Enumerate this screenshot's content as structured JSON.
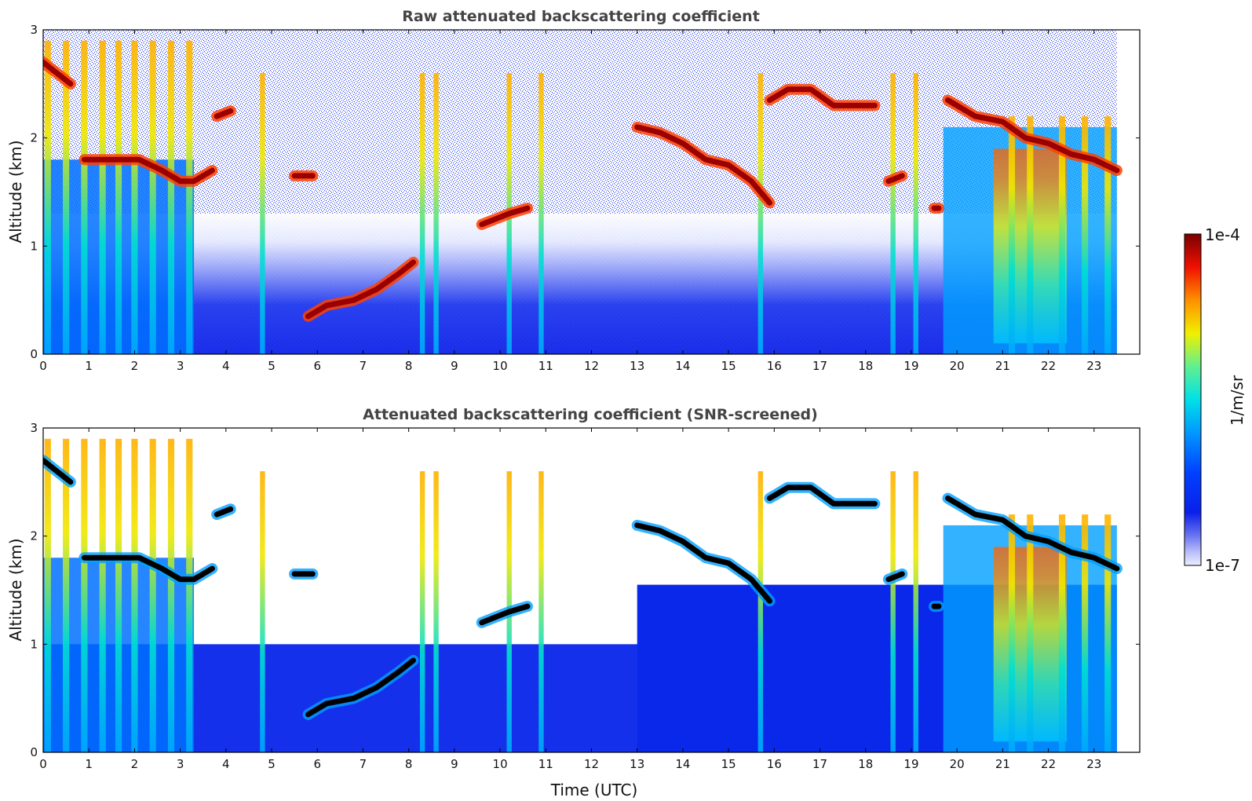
{
  "chart_data": [
    {
      "type": "heatmap",
      "title": "Raw attenuated backscattering coefficient",
      "xlabel": "",
      "ylabel": "Altitude (km)",
      "xlim": [
        0,
        24
      ],
      "ylim": [
        0,
        3
      ],
      "xticks": [
        "0",
        "1",
        "2",
        "3",
        "4",
        "5",
        "6",
        "7",
        "8",
        "9",
        "10",
        "11",
        "12",
        "13",
        "14",
        "15",
        "16",
        "17",
        "18",
        "19",
        "20",
        "21",
        "22",
        "23"
      ],
      "yticks": [
        "0",
        "1",
        "2",
        "3"
      ],
      "data_extent_hours": 23.5,
      "cloud_base_layers": [
        {
          "x": [
            0.0,
            0.3,
            0.6
          ],
          "y": [
            2.7,
            2.6,
            2.5
          ]
        },
        {
          "x": [
            0.9,
            1.5,
            2.1,
            2.6,
            3.0,
            3.3,
            3.7
          ],
          "y": [
            1.8,
            1.8,
            1.8,
            1.7,
            1.6,
            1.6,
            1.7
          ]
        },
        {
          "x": [
            3.8,
            4.1
          ],
          "y": [
            2.2,
            2.25
          ]
        },
        {
          "x": [
            5.5,
            5.9
          ],
          "y": [
            1.65,
            1.65
          ]
        },
        {
          "x": [
            5.8,
            6.2,
            6.8,
            7.3,
            7.8,
            8.1
          ],
          "y": [
            0.35,
            0.45,
            0.5,
            0.6,
            0.75,
            0.85
          ]
        },
        {
          "x": [
            9.6,
            10.2,
            10.6
          ],
          "y": [
            1.2,
            1.3,
            1.35
          ]
        },
        {
          "x": [
            13.0,
            13.5,
            14.0,
            14.5,
            15.0,
            15.5,
            15.9
          ],
          "y": [
            2.1,
            2.05,
            1.95,
            1.8,
            1.75,
            1.6,
            1.4
          ]
        },
        {
          "x": [
            15.9,
            16.3,
            16.8,
            17.3,
            17.8,
            18.2
          ],
          "y": [
            2.35,
            2.45,
            2.45,
            2.3,
            2.3,
            2.3
          ]
        },
        {
          "x": [
            18.5,
            18.8
          ],
          "y": [
            1.6,
            1.65
          ]
        },
        {
          "x": [
            19.5,
            19.6
          ],
          "y": [
            1.35,
            1.35
          ]
        },
        {
          "x": [
            19.8,
            20.4,
            21.0,
            21.5,
            22.0,
            22.5,
            23.0,
            23.5
          ],
          "y": [
            2.35,
            2.2,
            2.15,
            2.0,
            1.95,
            1.85,
            1.8,
            1.7
          ]
        }
      ],
      "precipitation_columns": [
        0.1,
        0.5,
        0.9,
        1.3,
        1.65,
        2.0,
        2.4,
        2.8,
        3.2,
        4.8,
        8.3,
        8.6,
        10.2,
        10.9,
        15.7,
        18.6,
        19.1,
        21.2,
        21.6,
        22.3,
        22.8,
        23.3
      ]
    },
    {
      "type": "heatmap",
      "title": "Attenuated backscattering coefficient (SNR-screened)",
      "xlabel": "Time (UTC)",
      "ylabel": "Altitude (km)",
      "xlim": [
        0,
        24
      ],
      "ylim": [
        0,
        3
      ],
      "xticks": [
        "0",
        "1",
        "2",
        "3",
        "4",
        "5",
        "6",
        "7",
        "8",
        "9",
        "10",
        "11",
        "12",
        "13",
        "14",
        "15",
        "16",
        "17",
        "18",
        "19",
        "20",
        "21",
        "22",
        "23"
      ],
      "yticks": [
        "0",
        "1",
        "2",
        "3"
      ],
      "data_extent_hours": 23.5
    }
  ],
  "colorbar": {
    "label": "1/m/sr",
    "max_label": "1e-4",
    "min_label": "1e-7",
    "colors": [
      "#eceefe",
      "#c9ccfa",
      "#a6acf6",
      "#8088f2",
      "#5460ee",
      "#1028ea",
      "#0050ff",
      "#0098ff",
      "#00d4f0",
      "#30f0c0",
      "#a0f060",
      "#f0f000",
      "#ffb000",
      "#ff5800",
      "#e00000",
      "#800000"
    ]
  }
}
